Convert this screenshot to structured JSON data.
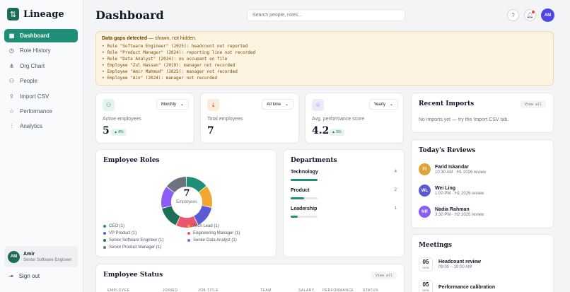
{
  "app": {
    "name": "Lineage",
    "logo": "lineage-logo"
  },
  "sidebar": {
    "items": [
      {
        "label": "Dashboard",
        "icon": "grid-icon",
        "glyph": "▦",
        "active": true
      },
      {
        "label": "Role History",
        "icon": "clock-icon",
        "glyph": "◷"
      },
      {
        "label": "Org Chart",
        "icon": "org-chart-icon",
        "glyph": "⋔"
      },
      {
        "label": "People",
        "icon": "people-icon",
        "glyph": "⚇"
      },
      {
        "label": "Import CSV",
        "icon": "upload-icon",
        "glyph": "⇪"
      },
      {
        "label": "Performance",
        "icon": "star-icon",
        "glyph": "☆"
      },
      {
        "label": "Analytics",
        "icon": "bar-chart-icon",
        "glyph": "⫶"
      }
    ],
    "user": {
      "initials": "AM",
      "name": "Amir",
      "role": "Senior Software Engineer"
    },
    "signout_label": "Sign out"
  },
  "header": {
    "title": "Dashboard",
    "search_placeholder": "Search people, roles...",
    "avatar_initials": "AM"
  },
  "warning": {
    "title": "Data gaps detected",
    "subtitle": " — shown, not hidden.",
    "items": [
      "Role \"Software Engineer\" (2025): headcount not reported",
      "Role \"Product Manager\" (2024): reporting line not recorded",
      "Role \"Data Analyst\" (2024): no occupant on file",
      "Employee \"Zul Hassan\" (2019): manager not recorded",
      "Employee \"Amir Mahmud\" (2025): manager not recorded",
      "Employee \"Ain\" (2024): manager not recorded"
    ]
  },
  "kpis": [
    {
      "label": "Active employees",
      "value": "5",
      "select": "Monthly",
      "delta": "▲ 8%",
      "icon": "people-icon",
      "glyph": "⚇",
      "color": "#1f8f78",
      "bg": "#e6f4ee"
    },
    {
      "label": "Total employees",
      "value": "7",
      "select": "All time",
      "delta": "",
      "icon": "download-icon",
      "glyph": "⤓",
      "color": "#c2410c",
      "bg": "#fdecdc"
    },
    {
      "label": "Avg. performance score",
      "value": "4.2",
      "select": "Yearly",
      "delta": "▲ 5%",
      "icon": "star-icon",
      "glyph": "☆",
      "color": "#4f46e5",
      "bg": "#ebeafd"
    }
  ],
  "recent_imports": {
    "title": "Recent Imports",
    "view_all": "View all",
    "empty": "No imports yet — try the Import CSV tab."
  },
  "roles": {
    "title": "Employee Roles",
    "center_value": "7",
    "center_label": "Employees",
    "legend": [
      {
        "label": "CEO (1)",
        "color": "#1f8f78"
      },
      {
        "label": "Tech Lead (1)",
        "color": "#f0a830"
      },
      {
        "label": "VP Product (1)",
        "color": "#5b5bd6"
      },
      {
        "label": "Engineering Manager (1)",
        "color": "#e8556d"
      },
      {
        "label": "Senior Software Engineer (1)",
        "color": "#1f6e57"
      },
      {
        "label": "Senior Data Analyst (1)",
        "color": "#8b5cf6"
      },
      {
        "label": "Senior Product Manager (1)",
        "color": "#6b7280"
      }
    ]
  },
  "departments": {
    "title": "Departments",
    "items": [
      {
        "name": "Technology",
        "count": "4",
        "fraction": 1.0
      },
      {
        "name": "Product",
        "count": "2",
        "fraction": 0.5
      },
      {
        "name": "Leadership",
        "count": "1",
        "fraction": 0.25
      }
    ]
  },
  "reviews": {
    "title": "Today's Reviews",
    "items": [
      {
        "initials": "FI",
        "name": "Farid Iskandar",
        "sub": "10:30 AM · H1 2026 review",
        "color": "#e0a33a"
      },
      {
        "initials": "WL",
        "name": "Wei Ling",
        "sub": "1:00 PM · H1 2026 review",
        "color": "#5b5bd6"
      },
      {
        "initials": "NR",
        "name": "Nadia Rahman",
        "sub": "3:30 PM · H2 2025 review",
        "color": "#8b5cf6"
      }
    ]
  },
  "meetings": {
    "title": "Meetings",
    "items": [
      {
        "day": "05",
        "month": "MON",
        "title": "Headcount review",
        "time": "09:00 – 10:00 AM"
      },
      {
        "day": "05",
        "month": "MON",
        "title": "Performance calibration",
        "time": ""
      }
    ]
  },
  "status": {
    "title": "Employee Status",
    "view_all": "View all",
    "columns": [
      "EMPLOYEE",
      "JOINED",
      "JOB TITLE",
      "TEAM",
      "SALARY",
      "PERFORMANCE",
      "STATUS"
    ]
  }
}
